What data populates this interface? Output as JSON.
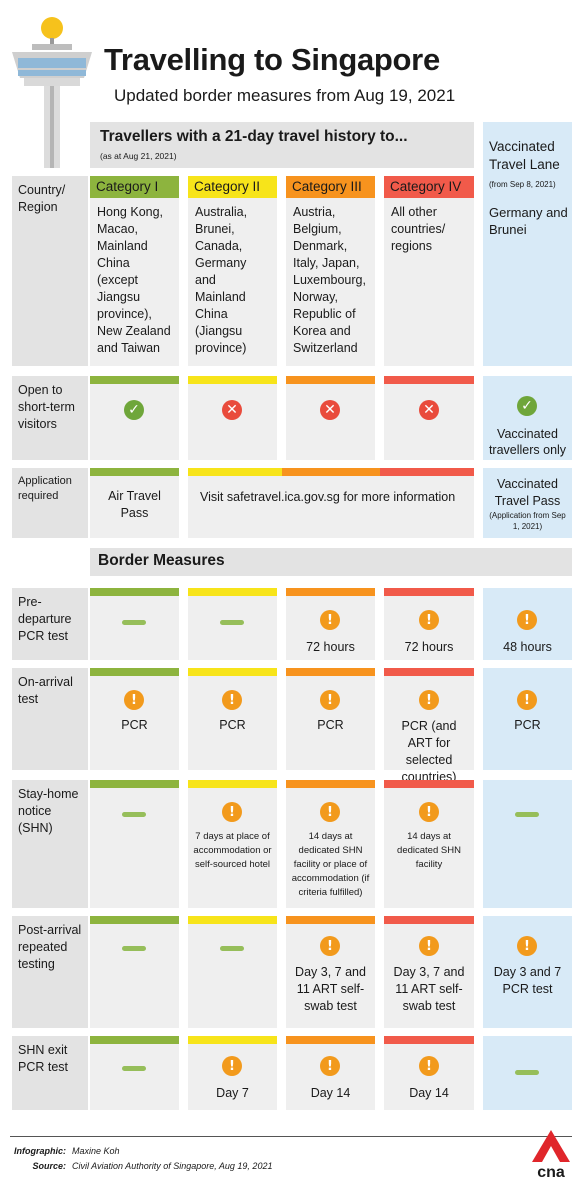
{
  "header": {
    "title": "Travelling to Singapore",
    "subtitle": "Updated border measures from Aug 19, 2021"
  },
  "travel_history": {
    "heading": "Travellers with a 21-day travel history to...",
    "as_at": "(as at Aug 21, 2021)"
  },
  "vtl": {
    "title": "Vaccinated Travel Lane",
    "from": "(from Sep 8, 2021)",
    "countries": "Germany and Brunei"
  },
  "colors": {
    "cat1": "#8db43e",
    "cat2": "#f7e41a",
    "cat3": "#f7931e",
    "cat4": "#f15a4a",
    "vtl": "#d8eaf7",
    "grey": "#e3e3e3"
  },
  "country_region": {
    "label": "Country/ Region",
    "categories": [
      {
        "name": "Category I",
        "countries": "Hong Kong, Macao, Mainland China (except Jiangsu province), New Zealand and Taiwan"
      },
      {
        "name": "Category II",
        "countries": "Australia, Brunei, Canada, Germany and Mainland China (Jiangsu province)"
      },
      {
        "name": "Category III",
        "countries": "Austria, Belgium, Denmark, Italy, Japan, Luxembourg, Norway, Republic of Korea and Switzerland"
      },
      {
        "name": "Category IV",
        "countries": "All other countries/ regions"
      }
    ]
  },
  "short_term": {
    "label": "Open to short-term visitors",
    "vtl_text": "Vaccinated travellers only"
  },
  "application": {
    "label": "Application required",
    "cat1": "Air Travel Pass",
    "others": "Visit safetravel.ica.gov.sg for more information",
    "vtl": "Vaccinated Travel Pass",
    "vtl_note": "(Application from Sep 1, 2021)"
  },
  "border_measures": {
    "heading": "Border Measures",
    "predeparture": {
      "label": "Pre-departure PCR test",
      "cat3": "72 hours",
      "cat4": "72 hours",
      "vtl": "48 hours"
    },
    "onarrival": {
      "label": "On-arrival test",
      "cat1": "PCR",
      "cat2": "PCR",
      "cat3": "PCR",
      "cat4": "PCR (and ART for selected countries)",
      "vtl": "PCR"
    },
    "shn": {
      "label": "Stay-home notice (SHN)",
      "cat2": "7 days at place of accommodation or self-sourced hotel",
      "cat3": "14 days at dedicated SHN facility or place of accommodation (if criteria fulfilled)",
      "cat4": "14 days at dedicated SHN facility"
    },
    "post": {
      "label": "Post-arrival repeated testing",
      "cat3": "Day 3, 7 and 11 ART self-swab test",
      "cat4": "Day 3, 7 and 11 ART self-swab test",
      "vtl": "Day 3 and 7 PCR test"
    },
    "exit": {
      "label": "SHN exit PCR test",
      "cat2": "Day 7",
      "cat3": "Day 14",
      "cat4": "Day 14"
    }
  },
  "footer": {
    "infographic_label": "Infographic:",
    "infographic_value": "Maxine Koh",
    "source_label": "Source:",
    "source_value": "Civil Aviation Authority of Singapore, Aug 19, 2021",
    "logo_text": "cna"
  }
}
